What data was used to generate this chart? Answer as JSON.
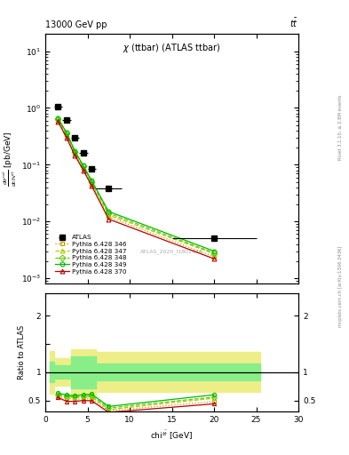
{
  "title_left": "13000 GeV pp",
  "title_right": "tt",
  "plot_title": "χ (ttbar) (ATLAS ttbar)",
  "watermark": "ATLAS_2020_I1801434",
  "right_label_top": "Rivet 3.1.10, ≥ 2.8M events",
  "right_label_bot": "mcplots.cern.ch [arXiv:1306.3436]",
  "atlas_x": [
    1.5,
    2.5,
    3.5,
    4.5,
    5.5,
    7.5,
    20.0
  ],
  "atlas_y": [
    1.05,
    0.62,
    0.3,
    0.16,
    0.085,
    0.038,
    0.005
  ],
  "atlas_xerr": [
    0.5,
    0.5,
    0.5,
    0.5,
    0.5,
    1.5,
    5.0
  ],
  "mc_x": [
    1.5,
    2.5,
    3.5,
    4.5,
    5.5,
    7.5,
    20.0
  ],
  "p346_y": [
    0.6,
    0.33,
    0.155,
    0.085,
    0.045,
    0.012,
    0.0024
  ],
  "p347_y": [
    0.62,
    0.35,
    0.165,
    0.09,
    0.048,
    0.013,
    0.0027
  ],
  "p348_y": [
    0.64,
    0.36,
    0.17,
    0.093,
    0.05,
    0.014,
    0.0028
  ],
  "p349_y": [
    0.66,
    0.37,
    0.175,
    0.096,
    0.052,
    0.015,
    0.003
  ],
  "p370_y": [
    0.58,
    0.3,
    0.145,
    0.08,
    0.042,
    0.011,
    0.0022
  ],
  "ratio_x": [
    1.5,
    2.5,
    3.5,
    4.5,
    5.5,
    7.5,
    20.0
  ],
  "ratio_p346_y": [
    0.57,
    0.535,
    0.52,
    0.53,
    0.53,
    0.32,
    0.48
  ],
  "ratio_p347_y": [
    0.59,
    0.565,
    0.55,
    0.56,
    0.565,
    0.34,
    0.54
  ],
  "ratio_p348_y": [
    0.61,
    0.58,
    0.567,
    0.58,
    0.588,
    0.368,
    0.56
  ],
  "ratio_p349_y": [
    0.63,
    0.597,
    0.583,
    0.6,
    0.612,
    0.395,
    0.6
  ],
  "ratio_p370_y": [
    0.552,
    0.485,
    0.483,
    0.5,
    0.494,
    0.29,
    0.44
  ],
  "band_edges": [
    0.5,
    1.0,
    2.0,
    3.0,
    5.0,
    6.0,
    9.0,
    25.5
  ],
  "band_green_lo": [
    0.82,
    0.82,
    0.88,
    0.88,
    0.72,
    0.72,
    0.85,
    0.85
  ],
  "band_green_hi": [
    1.18,
    1.18,
    1.12,
    1.12,
    1.28,
    1.28,
    1.15,
    1.15
  ],
  "band_yellow_lo": [
    0.62,
    0.62,
    0.76,
    0.76,
    0.6,
    0.6,
    0.65,
    0.65
  ],
  "band_yellow_hi": [
    1.38,
    1.38,
    1.24,
    1.24,
    1.4,
    1.4,
    1.35,
    1.35
  ],
  "colors": {
    "atlas": "#000000",
    "p346": "#cc9900",
    "p347": "#aacc00",
    "p348": "#66cc00",
    "p349": "#00bb00",
    "p370": "#bb0000"
  },
  "ylim_main": [
    0.0008,
    20
  ],
  "ylim_ratio": [
    0.3,
    2.4
  ],
  "xlim": [
    0,
    30
  ]
}
